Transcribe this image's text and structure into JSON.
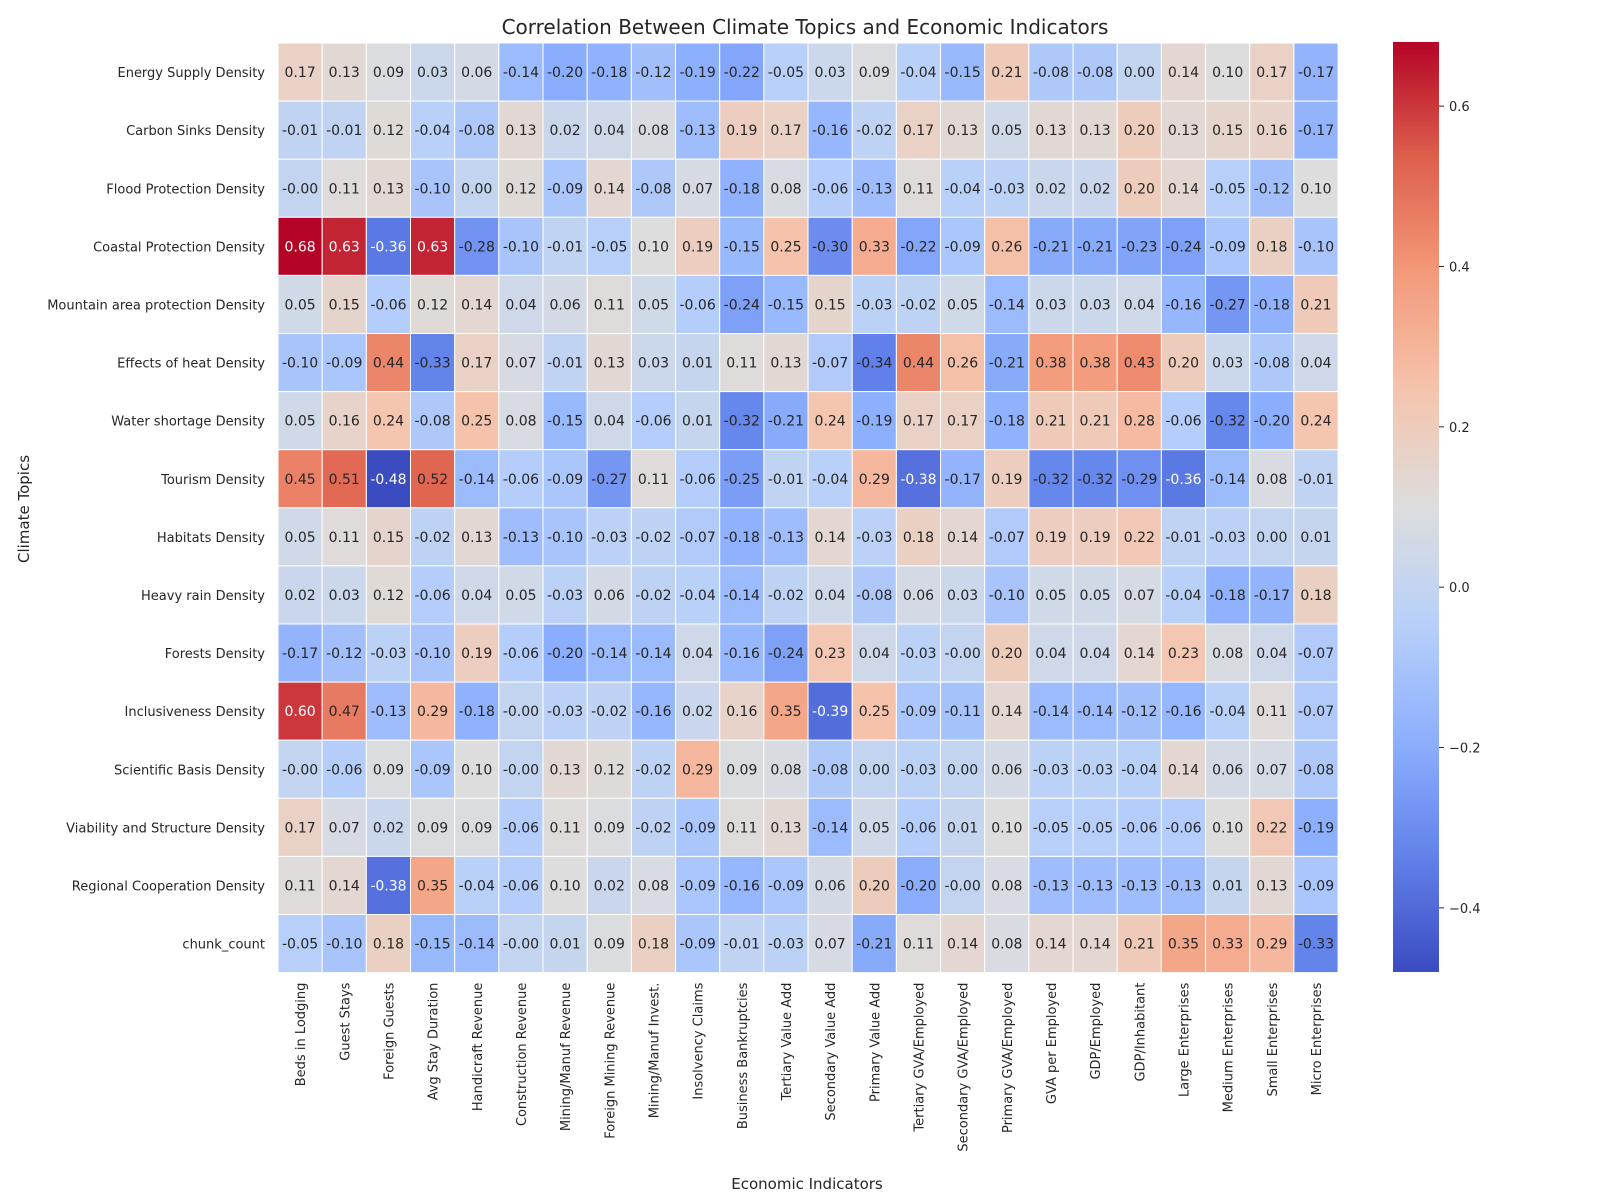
{
  "chart_data": {
    "type": "heatmap",
    "title": "Correlation Between Climate Topics and Economic Indicators",
    "xlabel": "Economic Indicators",
    "ylabel": "Climate Topics",
    "columns": [
      "Beds in Lodging",
      "Guest Stays",
      "Foreign Guests",
      "Avg Stay Duration",
      "Handicraft Revenue",
      "Construction Revenue",
      "Mining/Manuf Revenue",
      "Foreign Mining Revenue",
      "Mining/Manuf Invest.",
      "Insolvency Claims",
      "Business Bankruptcies",
      "Tertiary Value Add",
      "Secondary Value Add",
      "Primary Value Add",
      "Tertiary GVA/Employed",
      "Secondary GVA/Employed",
      "Primary GVA/Employed",
      "GVA per Employed",
      "GDP/Employed",
      "GDP/Inhabitant",
      "Large Enterprises",
      "Medium Enterprises",
      "Small Enterprises",
      "Micro Enterprises"
    ],
    "rows": [
      "Energy Supply Density",
      "Carbon Sinks Density",
      "Flood Protection Density",
      "Coastal Protection Density",
      "Mountain area protection Density",
      "Effects of heat Density",
      "Water shortage Density",
      "Tourism Density",
      "Habitats Density",
      "Heavy rain Density",
      "Forests Density",
      "Inclusiveness Density",
      "Scientific Basis Density",
      "Viability and Structure Density",
      "Regional Cooperation Density",
      "chunk_count"
    ],
    "values": [
      [
        "0.17",
        "0.13",
        "0.09",
        "0.03",
        "0.06",
        "-0.14",
        "-0.20",
        "-0.18",
        "-0.12",
        "-0.19",
        "-0.22",
        "-0.05",
        "0.03",
        "0.09",
        "-0.04",
        "-0.15",
        "0.21",
        "-0.08",
        "-0.08",
        "0.00",
        "0.14",
        "0.10",
        "0.17",
        "-0.17"
      ],
      [
        "-0.01",
        "-0.01",
        "0.12",
        "-0.04",
        "-0.08",
        "0.13",
        "0.02",
        "0.04",
        "0.08",
        "-0.13",
        "0.19",
        "0.17",
        "-0.16",
        "-0.02",
        "0.17",
        "0.13",
        "0.05",
        "0.13",
        "0.13",
        "0.20",
        "0.13",
        "0.15",
        "0.16",
        "-0.17"
      ],
      [
        "-0.00",
        "0.11",
        "0.13",
        "-0.10",
        "0.00",
        "0.12",
        "-0.09",
        "0.14",
        "-0.08",
        "0.07",
        "-0.18",
        "0.08",
        "-0.06",
        "-0.13",
        "0.11",
        "-0.04",
        "-0.03",
        "0.02",
        "0.02",
        "0.20",
        "0.14",
        "-0.05",
        "-0.12",
        "0.10"
      ],
      [
        "0.68",
        "0.63",
        "-0.36",
        "0.63",
        "-0.28",
        "-0.10",
        "-0.01",
        "-0.05",
        "0.10",
        "0.19",
        "-0.15",
        "0.25",
        "-0.30",
        "0.33",
        "-0.22",
        "-0.09",
        "0.26",
        "-0.21",
        "-0.21",
        "-0.23",
        "-0.24",
        "-0.09",
        "0.18",
        "-0.10"
      ],
      [
        "0.05",
        "0.15",
        "-0.06",
        "0.12",
        "0.14",
        "0.04",
        "0.06",
        "0.11",
        "0.05",
        "-0.06",
        "-0.24",
        "-0.15",
        "0.15",
        "-0.03",
        "-0.02",
        "0.05",
        "-0.14",
        "0.03",
        "0.03",
        "0.04",
        "-0.16",
        "-0.27",
        "-0.18",
        "0.21"
      ],
      [
        "-0.10",
        "-0.09",
        "0.44",
        "-0.33",
        "0.17",
        "0.07",
        "-0.01",
        "0.13",
        "0.03",
        "0.01",
        "0.11",
        "0.13",
        "-0.07",
        "-0.34",
        "0.44",
        "0.26",
        "-0.21",
        "0.38",
        "0.38",
        "0.43",
        "0.20",
        "0.03",
        "-0.08",
        "0.04"
      ],
      [
        "0.05",
        "0.16",
        "0.24",
        "-0.08",
        "0.25",
        "0.08",
        "-0.15",
        "0.04",
        "-0.06",
        "0.01",
        "-0.32",
        "-0.21",
        "0.24",
        "-0.19",
        "0.17",
        "0.17",
        "-0.18",
        "0.21",
        "0.21",
        "0.28",
        "-0.06",
        "-0.32",
        "-0.20",
        "0.24"
      ],
      [
        "0.45",
        "0.51",
        "-0.48",
        "0.52",
        "-0.14",
        "-0.06",
        "-0.09",
        "-0.27",
        "0.11",
        "-0.06",
        "-0.25",
        "-0.01",
        "-0.04",
        "0.29",
        "-0.38",
        "-0.17",
        "0.19",
        "-0.32",
        "-0.32",
        "-0.29",
        "-0.36",
        "-0.14",
        "0.08",
        "-0.01"
      ],
      [
        "0.05",
        "0.11",
        "0.15",
        "-0.02",
        "0.13",
        "-0.13",
        "-0.10",
        "-0.03",
        "-0.02",
        "-0.07",
        "-0.18",
        "-0.13",
        "0.14",
        "-0.03",
        "0.18",
        "0.14",
        "-0.07",
        "0.19",
        "0.19",
        "0.22",
        "-0.01",
        "-0.03",
        "0.00",
        "0.01"
      ],
      [
        "0.02",
        "0.03",
        "0.12",
        "-0.06",
        "0.04",
        "0.05",
        "-0.03",
        "0.06",
        "-0.02",
        "-0.04",
        "-0.14",
        "-0.02",
        "0.04",
        "-0.08",
        "0.06",
        "0.03",
        "-0.10",
        "0.05",
        "0.05",
        "0.07",
        "-0.04",
        "-0.18",
        "-0.17",
        "0.18"
      ],
      [
        "-0.17",
        "-0.12",
        "-0.03",
        "-0.10",
        "0.19",
        "-0.06",
        "-0.20",
        "-0.14",
        "-0.14",
        "0.04",
        "-0.16",
        "-0.24",
        "0.23",
        "0.04",
        "-0.03",
        "-0.00",
        "0.20",
        "0.04",
        "0.04",
        "0.14",
        "0.23",
        "0.08",
        "0.04",
        "-0.07"
      ],
      [
        "0.60",
        "0.47",
        "-0.13",
        "0.29",
        "-0.18",
        "-0.00",
        "-0.03",
        "-0.02",
        "-0.16",
        "0.02",
        "0.16",
        "0.35",
        "-0.39",
        "0.25",
        "-0.09",
        "-0.11",
        "0.14",
        "-0.14",
        "-0.14",
        "-0.12",
        "-0.16",
        "-0.04",
        "0.11",
        "-0.07"
      ],
      [
        "-0.00",
        "-0.06",
        "0.09",
        "-0.09",
        "0.10",
        "-0.00",
        "0.13",
        "0.12",
        "-0.02",
        "0.29",
        "0.09",
        "0.08",
        "-0.08",
        "0.00",
        "-0.03",
        "0.00",
        "0.06",
        "-0.03",
        "-0.03",
        "-0.04",
        "0.14",
        "0.06",
        "0.07",
        "-0.08"
      ],
      [
        "0.17",
        "0.07",
        "0.02",
        "0.09",
        "0.09",
        "-0.06",
        "0.11",
        "0.09",
        "-0.02",
        "-0.09",
        "0.11",
        "0.13",
        "-0.14",
        "0.05",
        "-0.06",
        "0.01",
        "0.10",
        "-0.05",
        "-0.05",
        "-0.06",
        "-0.06",
        "0.10",
        "0.22",
        "-0.19"
      ],
      [
        "0.11",
        "0.14",
        "-0.38",
        "0.35",
        "-0.04",
        "-0.06",
        "0.10",
        "0.02",
        "0.08",
        "-0.09",
        "-0.16",
        "-0.09",
        "0.06",
        "0.20",
        "-0.20",
        "-0.00",
        "0.08",
        "-0.13",
        "-0.13",
        "-0.13",
        "-0.13",
        "0.01",
        "0.13",
        "-0.09"
      ],
      [
        "-0.05",
        "-0.10",
        "0.18",
        "-0.15",
        "-0.14",
        "-0.00",
        "0.01",
        "0.09",
        "0.18",
        "-0.09",
        "-0.01",
        "-0.03",
        "0.07",
        "-0.21",
        "0.11",
        "0.14",
        "0.08",
        "0.14",
        "0.14",
        "0.21",
        "0.35",
        "0.33",
        "0.29",
        "-0.33"
      ]
    ],
    "colormap": "coolwarm",
    "colorbar_range": [
      -0.48,
      0.68
    ],
    "colorbar_ticks": [
      "−0.4",
      "−0.2",
      "0.0",
      "0.2",
      "0.4",
      "0.6"
    ],
    "colorbar_tick_values": [
      -0.4,
      -0.2,
      0.0,
      0.2,
      0.4,
      0.6
    ],
    "colors": {
      "low": "#3b4cc0",
      "mid": "#dddddd",
      "high": "#b40426",
      "grid": "#ffffff",
      "text_dark": "#262626",
      "text_light": "#ffffff"
    }
  }
}
